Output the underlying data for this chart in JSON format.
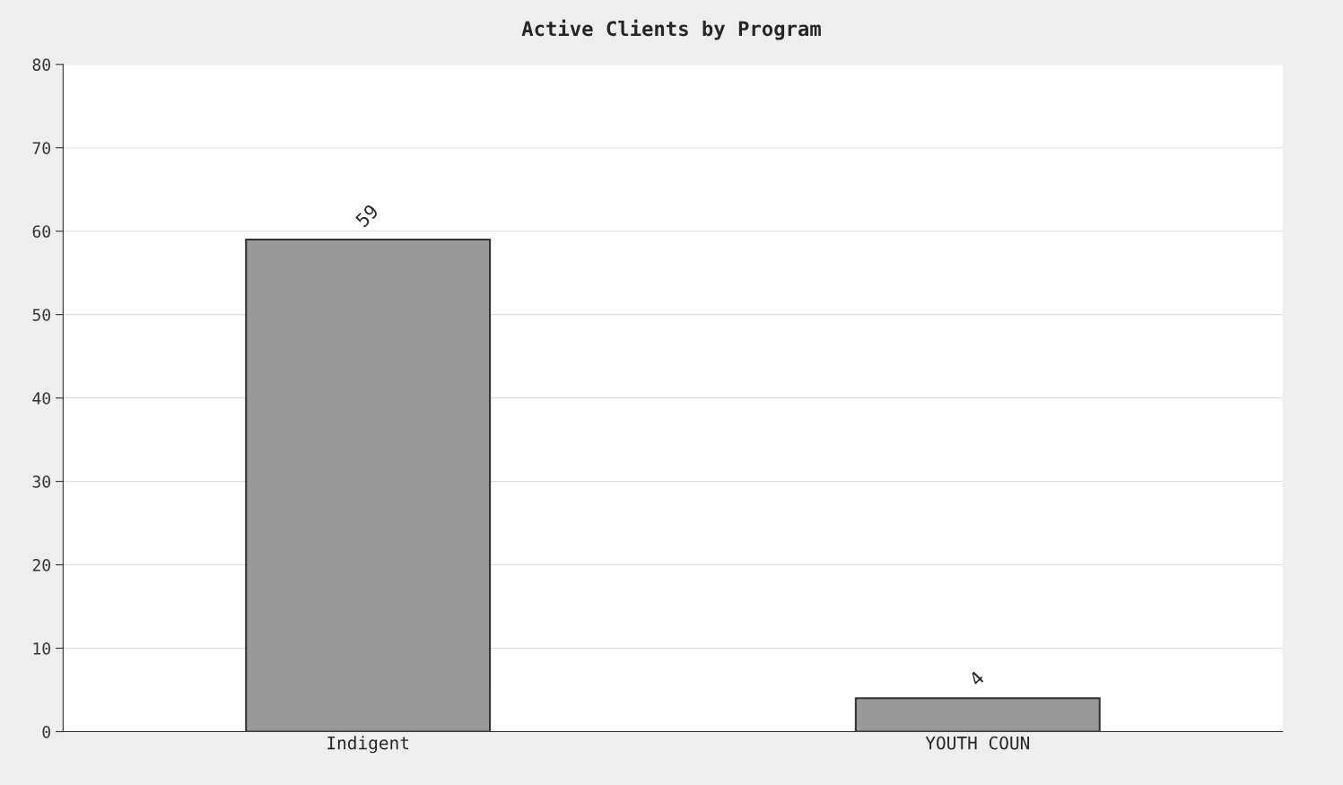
{
  "chart_data": {
    "type": "bar",
    "title": "Active Clients by Program",
    "categories": [
      "Indigent",
      "YOUTH COUN"
    ],
    "values": [
      59,
      4
    ],
    "color": "#999999",
    "ylim": [
      0,
      80
    ],
    "yticks": [
      0,
      10,
      20,
      30,
      40,
      50,
      60,
      70,
      80
    ],
    "grid": "y",
    "data_labels": true
  }
}
